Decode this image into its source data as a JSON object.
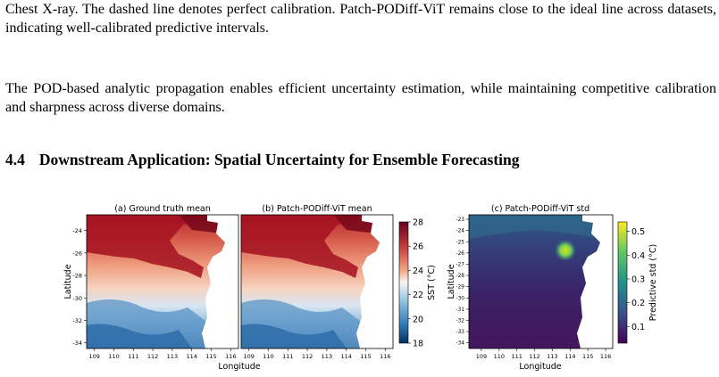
{
  "paragraph_1": "Chest X-ray. The dashed line denotes perfect calibration. Patch-PODiff-ViT remains close to the ideal line across datasets, indicating well-calibrated predictive intervals.",
  "paragraph_2": "The POD-based analytic propagation enables efficient uncertainty estimation, while maintaining competitive calibration and sharpness across diverse domains.",
  "section": {
    "number": "4.4",
    "title": "Downstream Application: Spatial Uncertainty for Ensemble Forecasting"
  },
  "figure": {
    "panels": [
      {
        "title": "(a) Ground truth mean"
      },
      {
        "title": "(b) Patch-PODiff-ViT mean"
      },
      {
        "title": "(c) Patch-PODiff-ViT std"
      }
    ],
    "xlabel": "Longitude",
    "ylabel": "Latitude",
    "x_ticks": [
      "109",
      "110",
      "111",
      "112",
      "113",
      "114",
      "115",
      "116"
    ],
    "y_ticks_ab": [
      "-24",
      "-26",
      "-28",
      "-30",
      "-32",
      "-34"
    ],
    "y_ticks_c": [
      "-23",
      "-24",
      "-25",
      "-26",
      "-27",
      "-28",
      "-29",
      "-30",
      "-31",
      "-32",
      "-33",
      "-34"
    ],
    "colorbar_sst": {
      "label": "SST (°C)",
      "ticks": [
        "28",
        "26",
        "24",
        "22",
        "20",
        "18"
      ],
      "range": [
        18,
        28
      ]
    },
    "colorbar_std": {
      "label": "Predictive std (°C)",
      "ticks": [
        "0.5",
        "0.4",
        "0.3",
        "0.2",
        "0.1"
      ],
      "range": [
        0.03,
        0.54
      ]
    },
    "colors": {
      "warm": "#8b0a1e",
      "mid": "#f4c2a8",
      "cool": "#1f5a9a",
      "std_low": "#3b1a55",
      "std_high": "#f3e21f"
    }
  }
}
